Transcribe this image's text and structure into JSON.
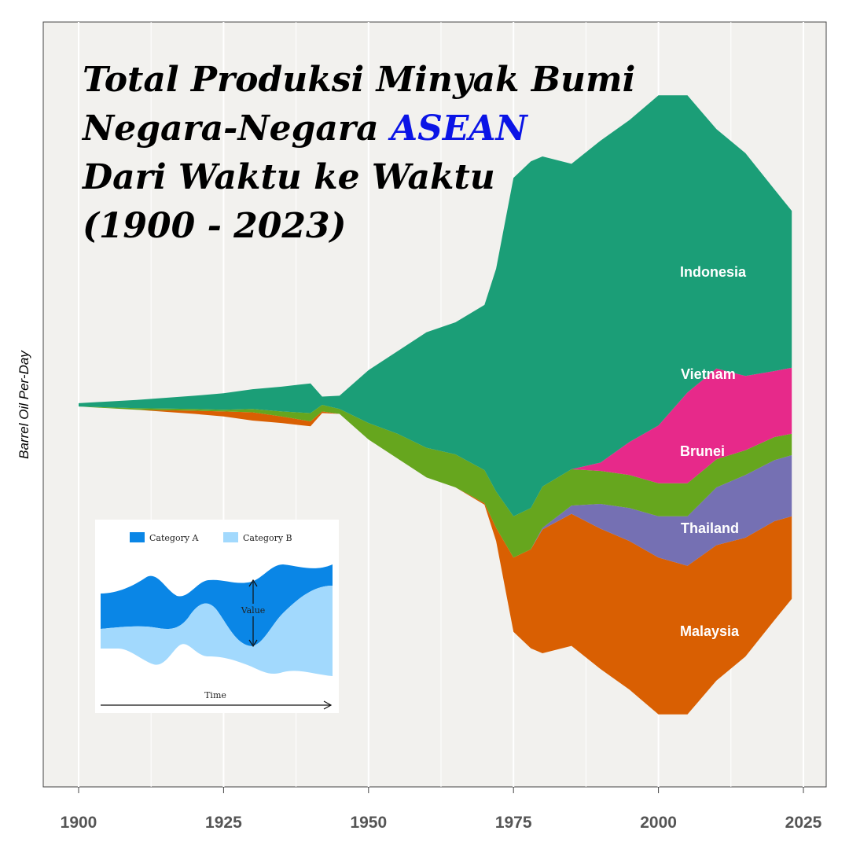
{
  "title": {
    "line1": "Total Produksi Minyak Bumi",
    "line2_prefix": "Negara-Negara ",
    "line2_accent": "ASEAN",
    "line3": "Dari Waktu ke Waktu",
    "line4": "(1900 - 2023)"
  },
  "colors": {
    "panel": "#f2f1ee",
    "grid": "#ffffff",
    "title_accent": "#0a14e6",
    "Indonesia": "#1b9e77",
    "Vietnam": "#e7298a",
    "Brunei": "#66a61e",
    "Thailand": "#7570b3",
    "Malaysia": "#d95f02"
  },
  "chart_data": {
    "type": "area",
    "subtype": "streamgraph",
    "xlabel": "",
    "ylabel": "Barrel Oil Per-Day",
    "xlim": [
      1900,
      2025
    ],
    "xticks": [
      1900,
      1925,
      1950,
      1975,
      2000,
      2025
    ],
    "x": [
      1900,
      1910,
      1920,
      1925,
      1930,
      1935,
      1940,
      1942,
      1945,
      1950,
      1955,
      1960,
      1965,
      1970,
      1972,
      1975,
      1978,
      1980,
      1985,
      1990,
      1995,
      2000,
      2005,
      2010,
      2015,
      2020,
      2023
    ],
    "series": [
      {
        "name": "Malaysia",
        "values": [
          0,
          0,
          0.02,
          0.03,
          0.05,
          0.04,
          0.03,
          0.01,
          0,
          0,
          0,
          0,
          0,
          0.01,
          0.08,
          0.45,
          0.6,
          0.75,
          0.8,
          0.85,
          0.9,
          0.95,
          0.9,
          0.82,
          0.72,
          0.6,
          0.5
        ]
      },
      {
        "name": "Thailand",
        "values": [
          0,
          0,
          0,
          0,
          0,
          0,
          0,
          0,
          0,
          0,
          0,
          0,
          0,
          0,
          0,
          0,
          0,
          0.01,
          0.05,
          0.15,
          0.2,
          0.25,
          0.3,
          0.35,
          0.38,
          0.37,
          0.37
        ]
      },
      {
        "name": "Brunei",
        "values": [
          0,
          0.01,
          0.01,
          0.01,
          0.02,
          0.03,
          0.05,
          0.04,
          0.03,
          0.1,
          0.15,
          0.18,
          0.2,
          0.2,
          0.22,
          0.25,
          0.25,
          0.25,
          0.22,
          0.2,
          0.2,
          0.2,
          0.2,
          0.17,
          0.15,
          0.14,
          0.13
        ]
      },
      {
        "name": "Vietnam",
        "values": [
          0,
          0,
          0,
          0,
          0,
          0,
          0,
          0,
          0,
          0,
          0,
          0,
          0,
          0,
          0,
          0,
          0,
          0,
          0,
          0.05,
          0.2,
          0.35,
          0.55,
          0.55,
          0.45,
          0.4,
          0.4
        ]
      },
      {
        "name": "Indonesia",
        "values": [
          0.02,
          0.05,
          0.08,
          0.1,
          0.12,
          0.15,
          0.18,
          0.05,
          0.08,
          0.32,
          0.5,
          0.7,
          0.8,
          1.0,
          1.35,
          2.05,
          2.1,
          2.0,
          1.85,
          1.95,
          1.95,
          2.0,
          1.8,
          1.45,
          1.35,
          1.1,
          0.95
        ]
      }
    ],
    "labels": [
      "Indonesia",
      "Vietnam",
      "Brunei",
      "Thailand",
      "Malaysia"
    ],
    "inset": {
      "legend": [
        "Category A",
        "Category B"
      ],
      "value_label": "Value",
      "time_label": "Time",
      "colors": {
        "Category A": "#0a86e6",
        "Category B": "#a2d9fd"
      }
    }
  }
}
